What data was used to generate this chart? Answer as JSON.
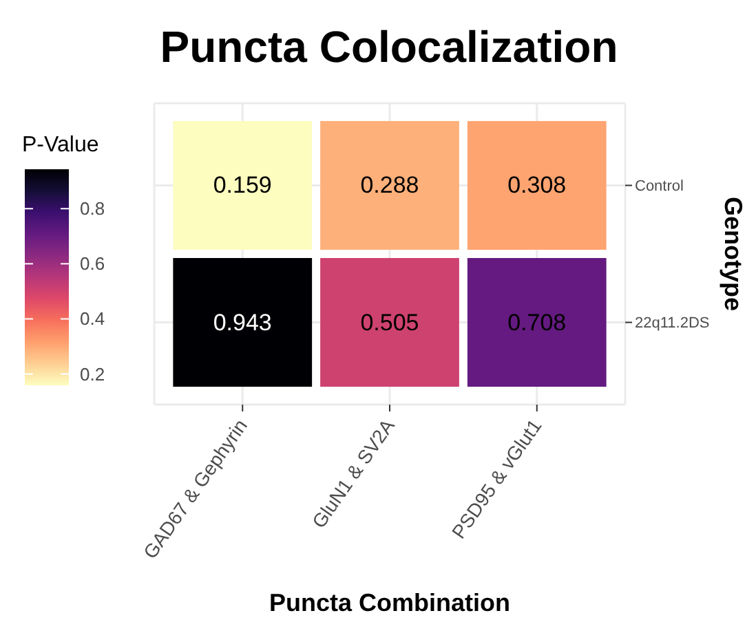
{
  "chart_data": {
    "type": "heatmap",
    "title": "Puncta Colocalization",
    "xlabel": "Puncta Combination",
    "ylabel": "Genotype",
    "clabel": "P-Value",
    "categories": [
      "GAD67 & Gephyrin",
      "GluN1 & SV2A",
      "PSD95 & vGlut1"
    ],
    "y_categories": [
      "Control",
      "22q11.2DS"
    ],
    "cells": [
      [
        0.159,
        0.288,
        0.308
      ],
      [
        0.943,
        0.505,
        0.708
      ]
    ],
    "clim": [
      0.159,
      0.943
    ],
    "cticks": [
      0.2,
      0.4,
      0.6,
      0.8
    ],
    "data_labels": true,
    "grid": true
  }
}
